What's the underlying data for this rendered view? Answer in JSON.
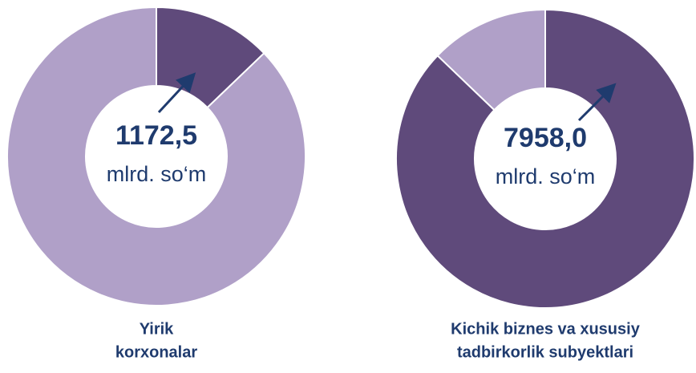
{
  "chart_data": [
    {
      "type": "donut",
      "title_lines": [
        "Yirik",
        "korxonalar"
      ],
      "values": [
        1172.5,
        7958.0
      ],
      "value_labels": [
        "1172,5",
        null
      ],
      "unit": "mlrd. so‘m",
      "colors": [
        "#5f4a7b",
        "#b0a0c8"
      ]
    },
    {
      "type": "donut",
      "title_lines": [
        "Kichik biznes va xususiy",
        "tadbirkorlik subyektlari"
      ],
      "values": [
        7958.0,
        1172.5
      ],
      "value_labels": [
        "7958,0",
        null
      ],
      "unit": "mlrd. so‘m",
      "colors": [
        "#5f4a7b",
        "#b0a0c8"
      ]
    }
  ]
}
